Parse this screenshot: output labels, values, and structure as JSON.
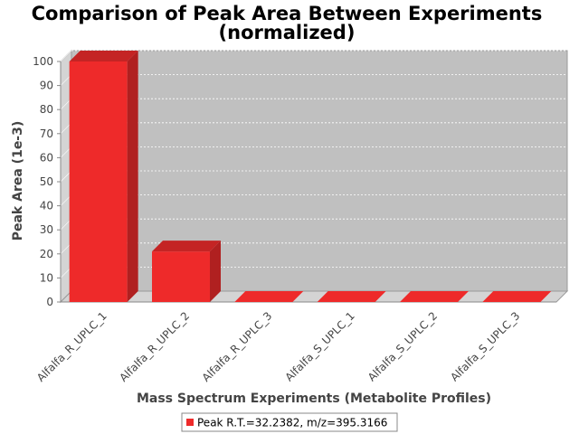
{
  "chart_data": {
    "type": "bar",
    "title": "Comparison of Peak Area Between Experiments",
    "subtitle": "(normalized)",
    "xlabel": "Mass Spectrum Experiments (Metabolite Profiles)",
    "ylabel": "Peak Area (1e-3)",
    "categories": [
      "Alfalfa_R_UPLC_1",
      "Alfalfa_R_UPLC_2",
      "Alfalfa_R_UPLC_3",
      "Alfalfa_S_UPLC_1",
      "Alfalfa_S_UPLC_2",
      "Alfalfa_S_UPLC_3"
    ],
    "series": [
      {
        "name": "Peak R.T.=32.2382, m/z=395.3166",
        "values": [
          100,
          21,
          0,
          0,
          0,
          0
        ],
        "color": "#ee2a2a"
      }
    ],
    "ylim": [
      0,
      100
    ],
    "yticks": [
      0,
      10,
      20,
      30,
      40,
      50,
      60,
      70,
      80,
      90,
      100
    ],
    "grid": true,
    "legend_position": "bottom",
    "plot_background": "#c0c0c0"
  }
}
